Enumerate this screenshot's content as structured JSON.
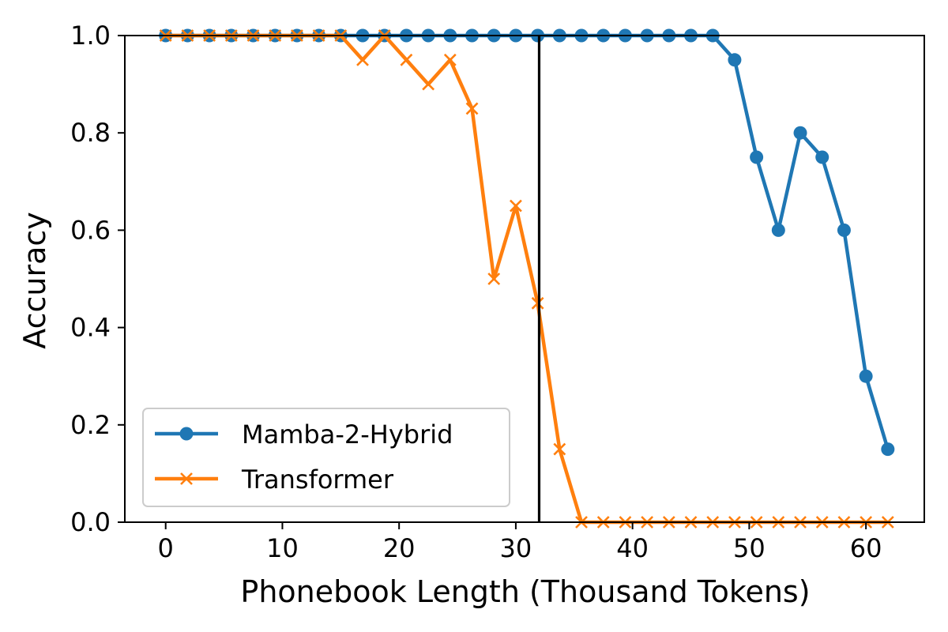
{
  "chart_data": {
    "type": "line",
    "title": "",
    "xlabel": "Phonebook Length (Thousand Tokens)",
    "ylabel": "Accuracy",
    "xlim": [
      -3.5,
      65
    ],
    "ylim": [
      0,
      1.0
    ],
    "xticks": [
      0,
      10,
      20,
      30,
      40,
      50,
      60
    ],
    "xtick_labels": [
      "0",
      "10",
      "20",
      "30",
      "40",
      "50",
      "60"
    ],
    "yticks": [
      0.0,
      0.2,
      0.4,
      0.6,
      0.8,
      1.0
    ],
    "ytick_labels": [
      "0.0",
      "0.2",
      "0.4",
      "0.6",
      "0.8",
      "1.0"
    ],
    "grid": false,
    "legend_position": "lower-left",
    "vertical_line": {
      "x": 32,
      "color": "#000000"
    },
    "x": [
      0,
      1.875,
      3.75,
      5.625,
      7.5,
      9.375,
      11.25,
      13.125,
      15,
      16.875,
      18.75,
      20.625,
      22.5,
      24.375,
      26.25,
      28.125,
      30,
      31.875,
      33.75,
      35.625,
      37.5,
      39.375,
      41.25,
      43.125,
      45,
      46.875,
      48.75,
      50.625,
      52.5,
      54.375,
      56.25,
      58.125,
      60,
      61.875
    ],
    "series": [
      {
        "name": "Mamba-2-Hybrid",
        "color": "#1f77b4",
        "marker": "circle",
        "values": [
          1.0,
          1.0,
          1.0,
          1.0,
          1.0,
          1.0,
          1.0,
          1.0,
          1.0,
          1.0,
          1.0,
          1.0,
          1.0,
          1.0,
          1.0,
          1.0,
          1.0,
          1.0,
          1.0,
          1.0,
          1.0,
          1.0,
          1.0,
          1.0,
          1.0,
          1.0,
          0.95,
          0.75,
          0.6,
          0.8,
          0.75,
          0.6,
          0.3,
          0.15
        ]
      },
      {
        "name": "Transformer",
        "color": "#ff7f0e",
        "marker": "x",
        "values": [
          1.0,
          1.0,
          1.0,
          1.0,
          1.0,
          1.0,
          1.0,
          1.0,
          1.0,
          0.95,
          1.0,
          0.95,
          0.9,
          0.95,
          0.85,
          0.5,
          0.65,
          0.45,
          0.15,
          0.0,
          0.0,
          0.0,
          0.0,
          0.0,
          0.0,
          0.0,
          0.0,
          0.0,
          0.0,
          0.0,
          0.0,
          0.0,
          0.0,
          0.0
        ]
      }
    ]
  }
}
